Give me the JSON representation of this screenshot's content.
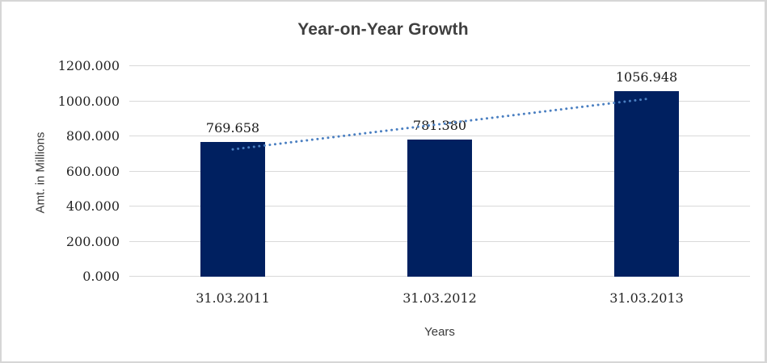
{
  "chart_data": {
    "type": "bar",
    "title": "Year-on-Year Growth",
    "xlabel": "Years",
    "ylabel": "Amt. in Millions",
    "categories": [
      "31.03.2011",
      "31.03.2012",
      "31.03.2013"
    ],
    "values": [
      769.658,
      781.38,
      1056.948
    ],
    "data_labels": [
      "769.658",
      "781.380",
      "1056.948"
    ],
    "y_tick_values": [
      0,
      200,
      400,
      600,
      800,
      1000,
      1200
    ],
    "y_tick_labels": [
      "0.000",
      "200.000",
      "400.000",
      "600.000",
      "800.000",
      "1000.000",
      "1200.000"
    ],
    "ylim": [
      0,
      1200
    ],
    "grid": "horizontal",
    "legend": "none",
    "trendline": {
      "type": "linear",
      "style": "dotted",
      "color": "#4a7fc1"
    },
    "colors": {
      "bar": "#002060",
      "gridline": "#d9d9d9",
      "title_text": "#3f3f3f",
      "tick_text": "#262626",
      "border": "#d6d6d6",
      "background": "#ffffff"
    }
  }
}
